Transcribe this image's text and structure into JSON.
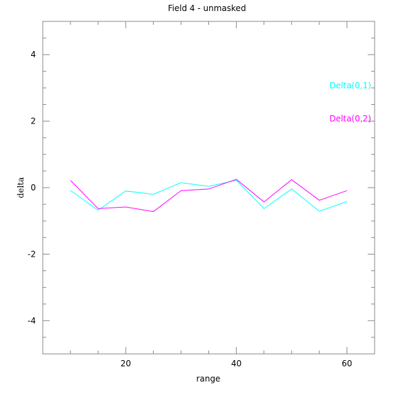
{
  "chart_data": {
    "type": "line",
    "title": "Field 4 - unmasked",
    "xlabel": "range",
    "ylabel": "delta",
    "xlim": [
      5,
      65
    ],
    "ylim": [
      -5,
      5
    ],
    "xticks": [
      20,
      40,
      60
    ],
    "yticks": [
      -4,
      -2,
      0,
      2,
      4
    ],
    "grid": false,
    "legend": "right, inside plot",
    "x": [
      10,
      15,
      20,
      25,
      30,
      35,
      40,
      45,
      50,
      55,
      60
    ],
    "series": [
      {
        "name": "Delta(0,1)",
        "color": "#00ffff",
        "values": [
          -0.08,
          -0.68,
          -0.1,
          -0.2,
          0.15,
          0.04,
          0.22,
          -0.63,
          -0.04,
          -0.71,
          -0.42
        ]
      },
      {
        "name": "Delta(0,2)",
        "color": "#ff00ff",
        "values": [
          0.22,
          -0.63,
          -0.58,
          -0.72,
          -0.09,
          -0.04,
          0.25,
          -0.43,
          0.24,
          -0.38,
          -0.09
        ]
      }
    ]
  }
}
